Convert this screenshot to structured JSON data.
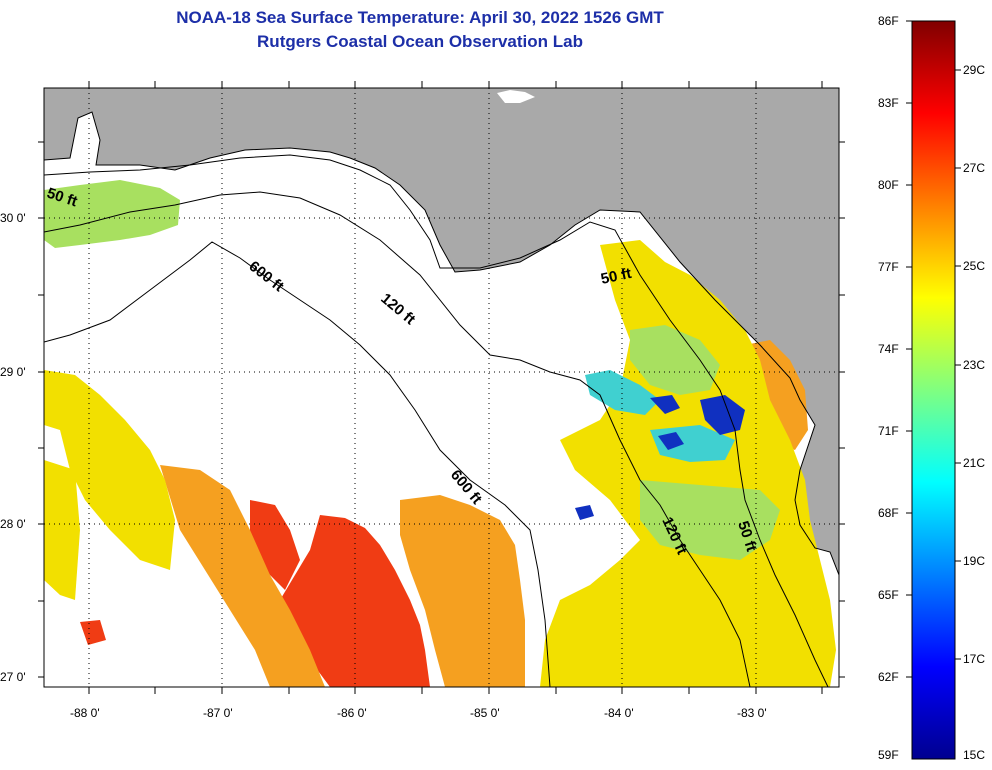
{
  "header": {
    "title": "NOAA-18 Sea Surface Temperature:  April 30, 2022 1526 GMT",
    "subtitle": "Rutgers Coastal Ocean Observation Lab"
  },
  "map": {
    "lat_labels": [
      "30 0'",
      "29 0'",
      "28 0'",
      "27 0'"
    ],
    "lon_labels": [
      "-88 0'",
      "-87 0'",
      "-86 0'",
      "-85 0'",
      "-84 0'",
      "-83 0'"
    ],
    "contour_labels": {
      "c50a": "50 ft",
      "c50b": "50 ft",
      "c50c": "50 ft",
      "c120a": "120 ft",
      "c120b": "120 ft",
      "c600a": "600 ft",
      "c600b": "600 ft"
    }
  },
  "colorbar": {
    "fahrenheit": [
      "86F",
      "83F",
      "80F",
      "77F",
      "74F",
      "71F",
      "68F",
      "65F",
      "62F",
      "59F"
    ],
    "celsius": [
      "29C",
      "27C",
      "25C",
      "23C",
      "21C",
      "19C",
      "17C",
      "15C"
    ],
    "colors": [
      "#00008f",
      "#0000ff",
      "#0080ff",
      "#00ffff",
      "#80ff80",
      "#ffff00",
      "#ff8000",
      "#ff0000",
      "#800000"
    ]
  },
  "palette": {
    "land": "#a9a9a9",
    "ocean_nodata": "#ffffff",
    "sst_warm_red": "#f03c14",
    "sst_orange": "#f5a020",
    "sst_yellow": "#f2e000",
    "sst_green": "#a8e060",
    "sst_cyan": "#40d0d0",
    "sst_blue": "#1030c0",
    "title_color": "#1d2fa8"
  }
}
